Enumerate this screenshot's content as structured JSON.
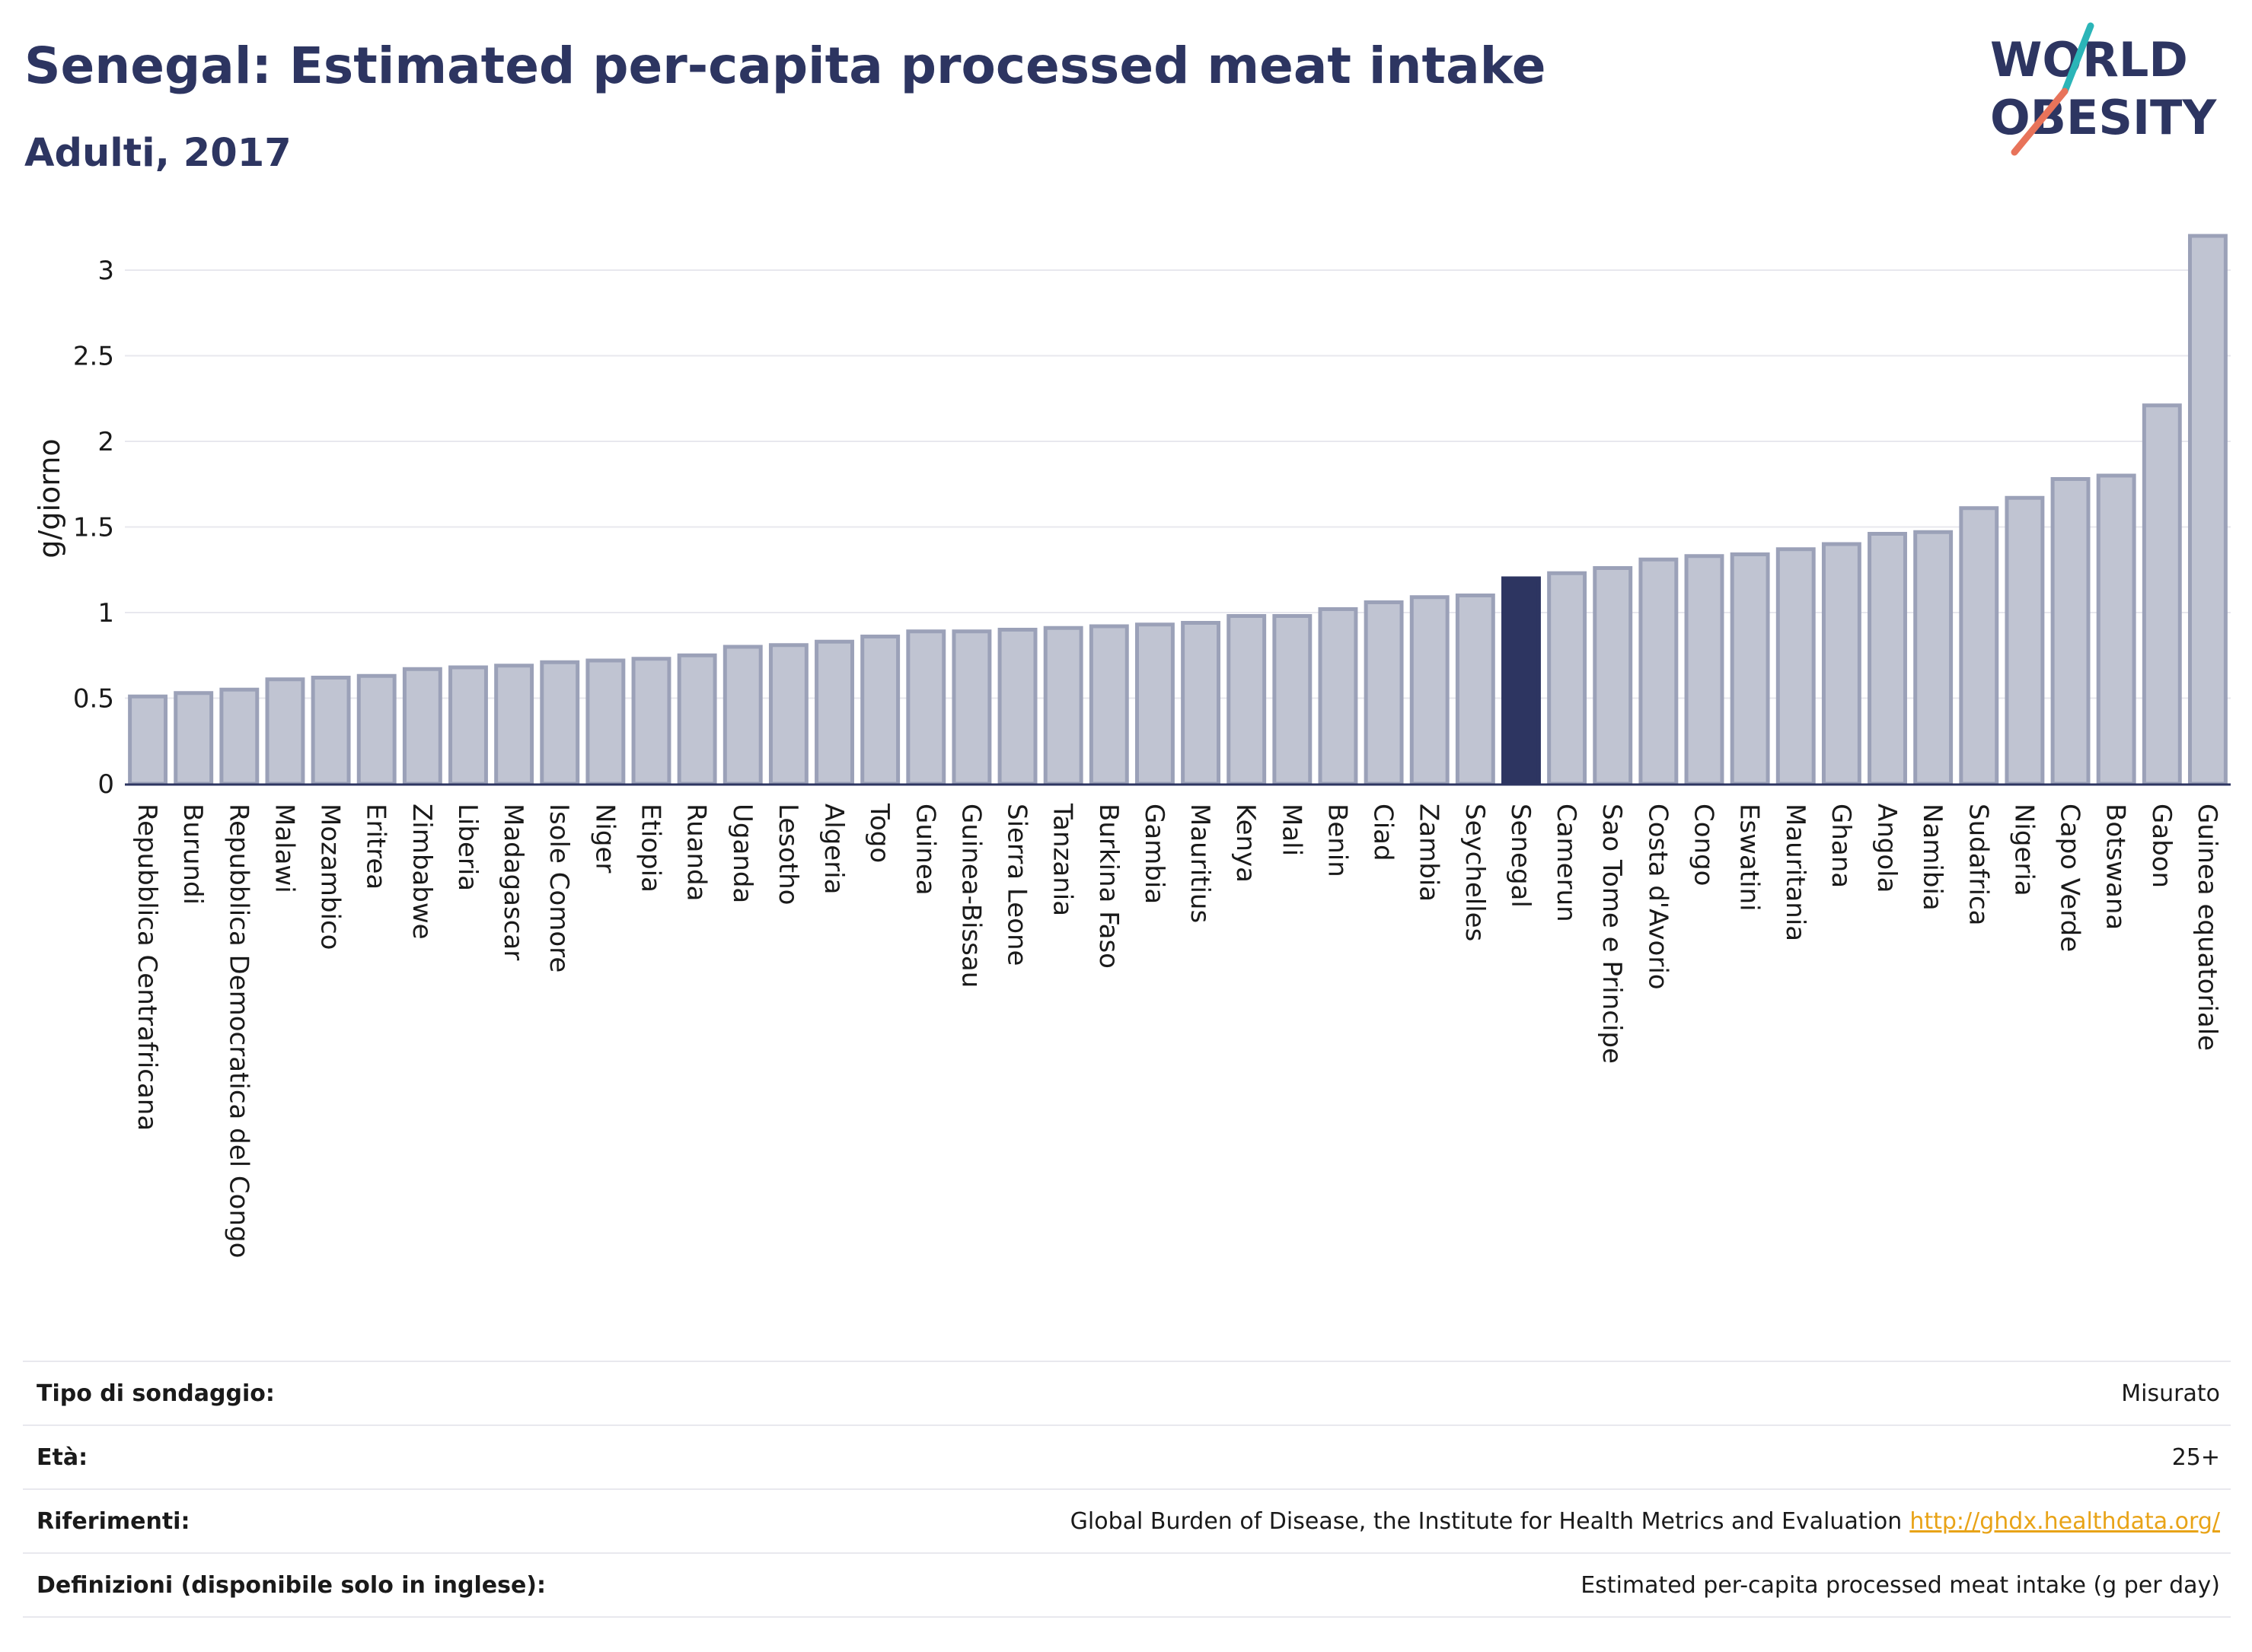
{
  "header": {
    "title": "Senegal: Estimated per-capita processed meat intake",
    "subtitle": "Adulti, 2017"
  },
  "logo": {
    "line1": "WORLD",
    "line2": "OBESITY",
    "colors": {
      "text": "#2d3561",
      "teal": "#2bb5b8",
      "coral": "#e8735a"
    }
  },
  "chart_data": {
    "type": "bar",
    "ylabel": "g/giorno",
    "ylim": [
      0,
      3.3
    ],
    "yticks": [
      "0",
      "0.5",
      "1",
      "1.5",
      "2",
      "2.5",
      "3"
    ],
    "grid": true,
    "highlight": "Senegal",
    "colors": {
      "bar": "#c0c4d2",
      "bar_border": "#9ba1b8",
      "highlight": "#2d3561",
      "grid": "#e8e8ee",
      "axis": "#2d3561"
    },
    "categories": [
      "Repubblica Centrafricana",
      "Burundi",
      "Repubblica Democratica del Congo",
      "Malawi",
      "Mozambico",
      "Eritrea",
      "Zimbabwe",
      "Liberia",
      "Madagascar",
      "Isole Comore",
      "Niger",
      "Etiopia",
      "Ruanda",
      "Uganda",
      "Lesotho",
      "Algeria",
      "Togo",
      "Guinea",
      "Guinea-Bissau",
      "Sierra Leone",
      "Tanzania",
      "Burkina Faso",
      "Gambia",
      "Mauritius",
      "Kenya",
      "Mali",
      "Benin",
      "Ciad",
      "Zambia",
      "Seychelles",
      "Senegal",
      "Camerun",
      "Sao Tome e Principe",
      "Costa d'Avorio",
      "Congo",
      "Eswatini",
      "Mauritania",
      "Ghana",
      "Angola",
      "Namibia",
      "Sudafrica",
      "Nigeria",
      "Capo Verde",
      "Botswana",
      "Gabon",
      "Guinea equatoriale"
    ],
    "values": [
      0.51,
      0.53,
      0.55,
      0.61,
      0.62,
      0.63,
      0.67,
      0.68,
      0.69,
      0.71,
      0.72,
      0.73,
      0.75,
      0.8,
      0.81,
      0.83,
      0.86,
      0.89,
      0.89,
      0.9,
      0.91,
      0.92,
      0.93,
      0.94,
      0.98,
      0.98,
      1.02,
      1.06,
      1.09,
      1.1,
      1.2,
      1.23,
      1.26,
      1.31,
      1.33,
      1.34,
      1.37,
      1.4,
      1.46,
      1.47,
      1.61,
      1.67,
      1.78,
      1.8,
      2.21,
      3.2
    ]
  },
  "footer": {
    "rows": [
      {
        "label": "Tipo di sondaggio:",
        "value": "Misurato"
      },
      {
        "label": "Età:",
        "value": "25+"
      },
      {
        "label": "Riferimenti:",
        "value": "Global Burden of Disease, the Institute for Health Metrics and Evaluation",
        "link": "http://ghdx.healthdata.org/"
      },
      {
        "label": "Definizioni (disponibile solo in inglese):",
        "value": "Estimated per-capita processed meat intake (g per day)"
      }
    ]
  }
}
